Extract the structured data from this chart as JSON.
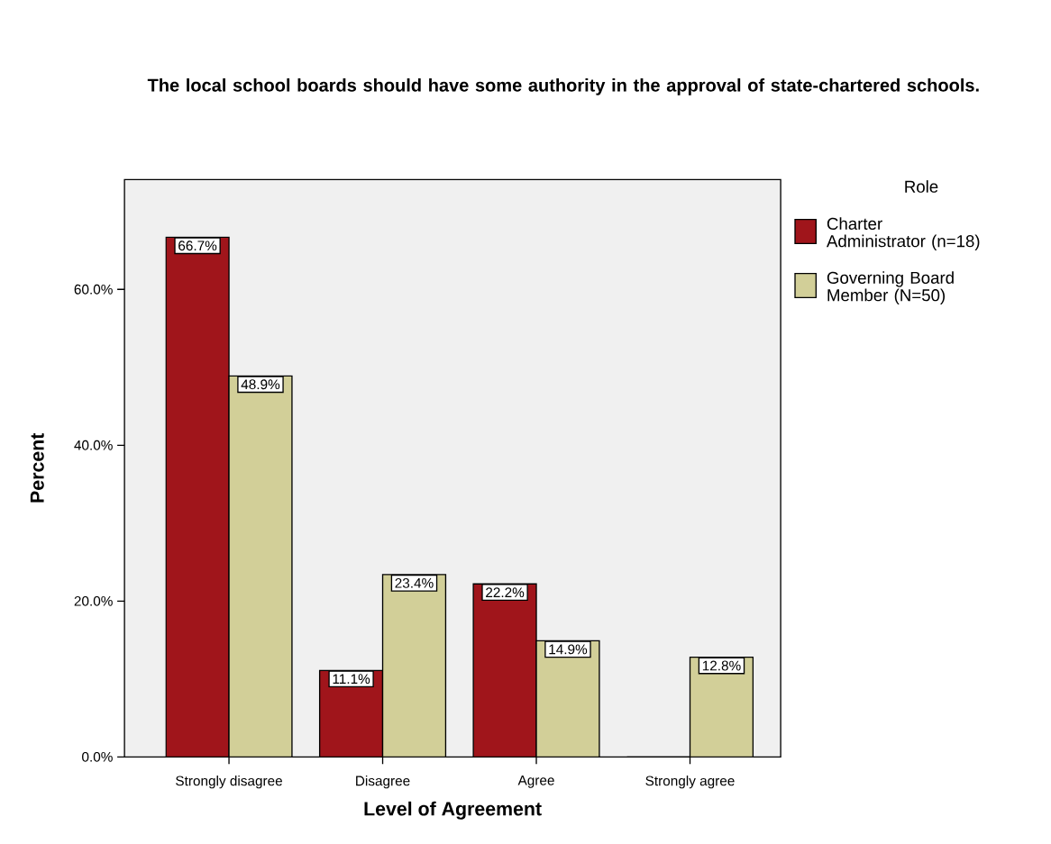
{
  "chart_data": {
    "type": "bar",
    "title": "The local school boards should have some authority in the approval of state-chartered schools.",
    "xlabel": "Level of Agreement",
    "ylabel": "Percent",
    "legend_title": "Role",
    "categories": [
      "Strongly disagree",
      "Disagree",
      "Agree",
      "Strongly agree"
    ],
    "series": [
      {
        "name": "Charter Administrator (n=18)",
        "color": "#a0151b",
        "values": [
          66.7,
          11.1,
          22.2,
          0
        ],
        "value_labels": [
          "66.7%",
          "11.1%",
          "22.2%",
          null
        ]
      },
      {
        "name": "Governing Board Member (N=50)",
        "color": "#d2cf98",
        "values": [
          48.9,
          23.4,
          14.9,
          12.8
        ],
        "value_labels": [
          "48.9%",
          "23.4%",
          "14.9%",
          "12.8%"
        ]
      }
    ],
    "ylim": [
      0,
      74.1
    ],
    "yticks": [
      {
        "value": 0,
        "label": "0.0%"
      },
      {
        "value": 20,
        "label": "20.0%"
      },
      {
        "value": 40,
        "label": "40.0%"
      },
      {
        "value": 60,
        "label": "60.0%"
      }
    ],
    "legend": "right",
    "grid": false
  }
}
